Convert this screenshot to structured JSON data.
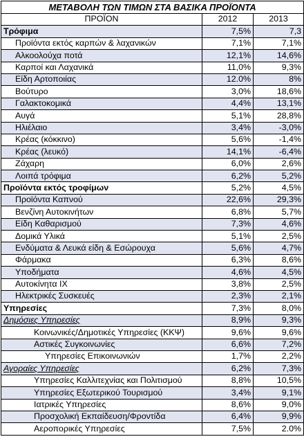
{
  "title": "ΜΕΤΑΒΟΛΗ ΤΩΝ ΤΙΜΩΝ ΣΤΑ ΒΑΣΙΚΑ ΠΡΟΪΟΝΤΑ",
  "header": {
    "product": "ΠΡΟΪΟΝ",
    "y1": "2012",
    "y2": "2013"
  },
  "rows": [
    {
      "label": "Τρόφιμα",
      "y1": "7,5%",
      "y2": "7,3",
      "kind": "cat",
      "shade": true
    },
    {
      "label": "Προϊόντα εκτός καρπών & λαχανικών",
      "y1": "7,1%",
      "y2": "7,1%",
      "kind": "l1",
      "shade": false
    },
    {
      "label": "Αλκοολούχα ποτά",
      "y1": "12,1%",
      "y2": "14,6%",
      "kind": "l1",
      "shade": true
    },
    {
      "label": "Καρποί και Λαχανικά",
      "y1": "11,0%",
      "y2": "9,3%",
      "kind": "l1",
      "shade": false
    },
    {
      "label": "Είδη Αρτοποιίας",
      "y1": "12.0%",
      "y2": "8%",
      "kind": "l1",
      "shade": true
    },
    {
      "label": "Βούτυρο",
      "y1": "3,0%",
      "y2": "18,6%",
      "kind": "l1",
      "shade": false
    },
    {
      "label": "Γαλακτοκομικά",
      "y1": "4,4%",
      "y2": "13,1%",
      "kind": "l1",
      "shade": true
    },
    {
      "label": "Αυγά",
      "y1": "5,1%",
      "y2": "28,8%",
      "kind": "l1",
      "shade": false
    },
    {
      "label": "Ηλιέλαιο",
      "y1": "3,4%",
      "y2": "-3,0%",
      "kind": "l1",
      "shade": true
    },
    {
      "label": "Κρέας (κόκκινο)",
      "y1": "5,6%",
      "y2": "-1,4%",
      "kind": "l1",
      "shade": false
    },
    {
      "label": "Κρέας (λευκό)",
      "y1": "14,1%",
      "y2": "-6,4%",
      "kind": "l1",
      "shade": true
    },
    {
      "label": "Ζάχαρη",
      "y1": "6,0%",
      "y2": "2,6%",
      "kind": "l1",
      "shade": false
    },
    {
      "label": "Λοιπά τρόφιμα",
      "y1": "6,2%",
      "y2": "5,2%",
      "kind": "l1",
      "shade": true
    },
    {
      "label": "Προϊόντα εκτός τροφίμων",
      "y1": "5,2%",
      "y2": "4,5%",
      "kind": "cat",
      "shade": false
    },
    {
      "label": "Προϊόντα Καπνού",
      "y1": "22,6%",
      "y2": "29,3%",
      "kind": "l1",
      "shade": true
    },
    {
      "label": "Βενζίνη Αυτοκινήτων",
      "y1": "6,8%",
      "y2": "5,7%",
      "kind": "l1",
      "shade": false
    },
    {
      "label": "Είδη Καθαρισμού",
      "y1": "7,3%",
      "y2": "4,6%",
      "kind": "l1",
      "shade": true
    },
    {
      "label": "Δομικά Υλικά",
      "y1": "5,1%",
      "y2": "2,5%",
      "kind": "l1",
      "shade": false
    },
    {
      "label": "Ενδύματα & Λευκά είδη & Εσώρουχα",
      "y1": "5,6%",
      "y2": "4,7%",
      "kind": "l1",
      "shade": true
    },
    {
      "label": "Φάρμακα",
      "y1": "6,3%",
      "y2": "8,6%",
      "kind": "l1",
      "shade": false
    },
    {
      "label": "Υποδήματα",
      "y1": "4,6%",
      "y2": "4,5%",
      "kind": "l1",
      "shade": true
    },
    {
      "label": "Αυτοκίνητα ΙΧ",
      "y1": "3,8%",
      "y2": "2,5%",
      "kind": "l1",
      "shade": false
    },
    {
      "label": "Ηλεκτρικές Συσκευές",
      "y1": "2,3%",
      "y2": "2,1%",
      "kind": "l1",
      "shade": true
    },
    {
      "label": "Υπηρεσίες",
      "y1": "7,3%",
      "y2": "8,0%",
      "kind": "cat",
      "shade": false
    },
    {
      "label": "Δημόσιες Υπηρεσίες",
      "y1": "8,9%",
      "y2": "9,3%",
      "kind": "sub",
      "shade": true
    },
    {
      "label": "Κοινωνικές/Δημοτικές Υπηρεσίες (ΚΚΨ)",
      "y1": "9,6%",
      "y2": "9,6%",
      "kind": "l2",
      "shade": false
    },
    {
      "label": "Αστικές Συγκοινωνίες",
      "y1": "6,6%",
      "y2": "7,2%",
      "kind": "l2",
      "shade": true
    },
    {
      "label": "Υπηρεσίες Επικοινωνιών",
      "y1": "1,7%",
      "y2": "2,2%",
      "kind": "l3",
      "shade": false
    },
    {
      "label": "Αγοραίες Υπηρεσίες",
      "y1": "6,2%",
      "y2": "7,3%",
      "kind": "sub",
      "shade": true
    },
    {
      "label": "Υπηρεσίες Καλλιτεχνίας και Πολιτισμού",
      "y1": "8,8%",
      "y2": "10,5%",
      "kind": "l2",
      "shade": false
    },
    {
      "label": "Υπηρεσίες Εξωτερικού Τουρισμού",
      "y1": "3,4%",
      "y2": "9,1%",
      "kind": "l2",
      "shade": true
    },
    {
      "label": "Ιατρικές Υπηρεσίες",
      "y1": "8,6%",
      "y2": "9,0%",
      "kind": "l2",
      "shade": false
    },
    {
      "label": "Προσχολική Εκπαίδευση/Φροντίδα",
      "y1": "6,4%",
      "y2": "9,9%",
      "kind": "l2",
      "shade": true
    },
    {
      "label": "Αεροπορικές Υπηρεσίες",
      "y1": "7,5%",
      "y2": "2.0%",
      "kind": "l2",
      "shade": false
    }
  ]
}
